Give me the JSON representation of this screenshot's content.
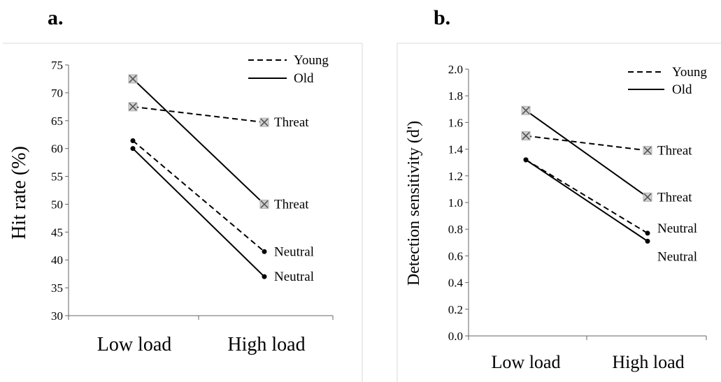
{
  "chart_data": [
    {
      "panel_label": "a.",
      "type": "line",
      "categories": [
        "Low load",
        "High load"
      ],
      "ylabel": "Hit rate (%)",
      "ylim": [
        30,
        75
      ],
      "yticks": [
        30,
        35,
        40,
        45,
        50,
        55,
        60,
        65,
        70,
        75
      ],
      "legend": [
        {
          "name": "Young",
          "style": "dashed"
        },
        {
          "name": "Old",
          "style": "solid"
        }
      ],
      "legend_position": "top-right",
      "series": [
        {
          "group": "Young",
          "condition": "Threat",
          "style": "dashed",
          "marker": "cross",
          "values": [
            67.5,
            64.7
          ],
          "label": "Threat"
        },
        {
          "group": "Old",
          "condition": "Threat",
          "style": "solid",
          "marker": "cross",
          "values": [
            72.5,
            50.0
          ],
          "label": "Threat"
        },
        {
          "group": "Young",
          "condition": "Neutral",
          "style": "dashed",
          "marker": "dot",
          "values": [
            61.4,
            41.5
          ],
          "label": "Neutral"
        },
        {
          "group": "Old",
          "condition": "Neutral",
          "style": "solid",
          "marker": "dot",
          "values": [
            60.0,
            37.0
          ],
          "label": "Neutral"
        }
      ]
    },
    {
      "panel_label": "b.",
      "type": "line",
      "categories": [
        "Low load",
        "High load"
      ],
      "ylabel": "Detection sensitivity (d')",
      "ylim": [
        0.0,
        2.0
      ],
      "yticks": [
        "0.0",
        "0.2",
        "0.4",
        "0.6",
        "0.8",
        "1.0",
        "1.2",
        "1.4",
        "1.6",
        "1.8",
        "2.0"
      ],
      "legend": [
        {
          "name": "Young",
          "style": "dashed"
        },
        {
          "name": "Old",
          "style": "solid"
        }
      ],
      "legend_position": "top-right",
      "series": [
        {
          "group": "Young",
          "condition": "Threat",
          "style": "dashed",
          "marker": "cross",
          "values": [
            1.5,
            1.39
          ],
          "label": "Threat"
        },
        {
          "group": "Old",
          "condition": "Threat",
          "style": "solid",
          "marker": "cross",
          "values": [
            1.69,
            1.04
          ],
          "label": "Threat"
        },
        {
          "group": "Young",
          "condition": "Neutral",
          "style": "dashed",
          "marker": "dot",
          "values": [
            1.32,
            0.77
          ],
          "label": "Neutral"
        },
        {
          "group": "Old",
          "condition": "Neutral",
          "style": "solid",
          "marker": "dot",
          "values": [
            1.32,
            0.71
          ],
          "label": "Neutral"
        }
      ]
    }
  ]
}
